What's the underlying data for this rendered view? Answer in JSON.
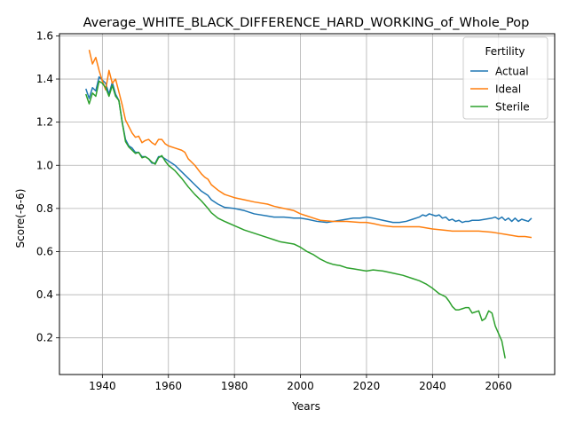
{
  "chart_data": {
    "type": "line",
    "title": "Average_WHITE_BLACK_DIFFERENCE_HARD_WORKING_of_Whole_Pop",
    "xlabel": "Years",
    "ylabel": "Score(-6-6)",
    "xlim": [
      1927,
      2077
    ],
    "ylim": [
      0.03,
      1.61
    ],
    "xticks": [
      1940,
      1960,
      1980,
      2000,
      2020,
      2040,
      2060
    ],
    "yticks": [
      0.2,
      0.4,
      0.6,
      0.8,
      1.0,
      1.2,
      1.4,
      1.6
    ],
    "ytick_labels": [
      "0.2",
      "0.4",
      "0.6",
      "0.8",
      "1.0",
      "1.2",
      "1.4",
      "1.6"
    ],
    "grid": true,
    "legend": {
      "title": "Fertility",
      "position": "top-right"
    },
    "series": [
      {
        "name": "Actual",
        "color": "#1f77b4",
        "points": [
          [
            1935,
            1.355
          ],
          [
            1936,
            1.31
          ],
          [
            1937,
            1.36
          ],
          [
            1938,
            1.345
          ],
          [
            1939,
            1.41
          ],
          [
            1940,
            1.395
          ],
          [
            1941,
            1.38
          ],
          [
            1942,
            1.33
          ],
          [
            1943,
            1.385
          ],
          [
            1944,
            1.33
          ],
          [
            1945,
            1.3
          ],
          [
            1946,
            1.2
          ],
          [
            1947,
            1.12
          ],
          [
            1948,
            1.09
          ],
          [
            1949,
            1.08
          ],
          [
            1950,
            1.06
          ],
          [
            1951,
            1.06
          ],
          [
            1952,
            1.04
          ],
          [
            1953,
            1.04
          ],
          [
            1954,
            1.03
          ],
          [
            1955,
            1.01
          ],
          [
            1956,
            1.01
          ],
          [
            1957,
            1.04
          ],
          [
            1958,
            1.04
          ],
          [
            1959,
            1.03
          ],
          [
            1960,
            1.02
          ],
          [
            1962,
            1.0
          ],
          [
            1964,
            0.97
          ],
          [
            1966,
            0.94
          ],
          [
            1968,
            0.91
          ],
          [
            1970,
            0.88
          ],
          [
            1972,
            0.86
          ],
          [
            1973,
            0.84
          ],
          [
            1975,
            0.82
          ],
          [
            1977,
            0.805
          ],
          [
            1980,
            0.8
          ],
          [
            1983,
            0.79
          ],
          [
            1986,
            0.775
          ],
          [
            1990,
            0.765
          ],
          [
            1992,
            0.76
          ],
          [
            1995,
            0.76
          ],
          [
            1998,
            0.755
          ],
          [
            2000,
            0.755
          ],
          [
            2002,
            0.75
          ],
          [
            2005,
            0.74
          ],
          [
            2008,
            0.735
          ],
          [
            2010,
            0.74
          ],
          [
            2012,
            0.745
          ],
          [
            2014,
            0.75
          ],
          [
            2016,
            0.755
          ],
          [
            2018,
            0.755
          ],
          [
            2020,
            0.76
          ],
          [
            2022,
            0.755
          ],
          [
            2025,
            0.745
          ],
          [
            2028,
            0.735
          ],
          [
            2030,
            0.735
          ],
          [
            2032,
            0.74
          ],
          [
            2034,
            0.75
          ],
          [
            2036,
            0.76
          ],
          [
            2037,
            0.77
          ],
          [
            2038,
            0.765
          ],
          [
            2039,
            0.775
          ],
          [
            2040,
            0.77
          ],
          [
            2041,
            0.765
          ],
          [
            2042,
            0.77
          ],
          [
            2043,
            0.755
          ],
          [
            2044,
            0.76
          ],
          [
            2045,
            0.745
          ],
          [
            2046,
            0.75
          ],
          [
            2047,
            0.74
          ],
          [
            2048,
            0.745
          ],
          [
            2049,
            0.735
          ],
          [
            2050,
            0.74
          ],
          [
            2051,
            0.74
          ],
          [
            2052,
            0.745
          ],
          [
            2054,
            0.745
          ],
          [
            2056,
            0.75
          ],
          [
            2058,
            0.755
          ],
          [
            2059,
            0.76
          ],
          [
            2060,
            0.75
          ],
          [
            2061,
            0.76
          ],
          [
            2062,
            0.745
          ],
          [
            2063,
            0.755
          ],
          [
            2064,
            0.74
          ],
          [
            2065,
            0.755
          ],
          [
            2066,
            0.74
          ],
          [
            2067,
            0.75
          ],
          [
            2068,
            0.745
          ],
          [
            2069,
            0.74
          ],
          [
            2070,
            0.755
          ]
        ]
      },
      {
        "name": "Ideal",
        "color": "#ff7f0e",
        "points": [
          [
            1936,
            1.535
          ],
          [
            1937,
            1.47
          ],
          [
            1938,
            1.5
          ],
          [
            1939,
            1.44
          ],
          [
            1940,
            1.39
          ],
          [
            1941,
            1.35
          ],
          [
            1942,
            1.44
          ],
          [
            1943,
            1.38
          ],
          [
            1944,
            1.4
          ],
          [
            1945,
            1.34
          ],
          [
            1946,
            1.28
          ],
          [
            1947,
            1.21
          ],
          [
            1948,
            1.18
          ],
          [
            1949,
            1.15
          ],
          [
            1950,
            1.13
          ],
          [
            1951,
            1.135
          ],
          [
            1952,
            1.105
          ],
          [
            1953,
            1.115
          ],
          [
            1954,
            1.12
          ],
          [
            1955,
            1.105
          ],
          [
            1956,
            1.095
          ],
          [
            1957,
            1.12
          ],
          [
            1958,
            1.12
          ],
          [
            1959,
            1.1
          ],
          [
            1960,
            1.09
          ],
          [
            1962,
            1.08
          ],
          [
            1964,
            1.07
          ],
          [
            1965,
            1.06
          ],
          [
            1966,
            1.03
          ],
          [
            1968,
            1.0
          ],
          [
            1970,
            0.96
          ],
          [
            1971,
            0.945
          ],
          [
            1972,
            0.935
          ],
          [
            1973,
            0.91
          ],
          [
            1975,
            0.885
          ],
          [
            1977,
            0.865
          ],
          [
            1980,
            0.85
          ],
          [
            1983,
            0.84
          ],
          [
            1986,
            0.83
          ],
          [
            1990,
            0.82
          ],
          [
            1992,
            0.81
          ],
          [
            1995,
            0.8
          ],
          [
            1998,
            0.79
          ],
          [
            2000,
            0.775
          ],
          [
            2002,
            0.765
          ],
          [
            2004,
            0.755
          ],
          [
            2006,
            0.745
          ],
          [
            2010,
            0.74
          ],
          [
            2014,
            0.74
          ],
          [
            2018,
            0.735
          ],
          [
            2020,
            0.735
          ],
          [
            2022,
            0.73
          ],
          [
            2025,
            0.72
          ],
          [
            2028,
            0.715
          ],
          [
            2031,
            0.715
          ],
          [
            2034,
            0.715
          ],
          [
            2036,
            0.715
          ],
          [
            2038,
            0.71
          ],
          [
            2040,
            0.705
          ],
          [
            2043,
            0.7
          ],
          [
            2046,
            0.695
          ],
          [
            2050,
            0.695
          ],
          [
            2054,
            0.695
          ],
          [
            2058,
            0.69
          ],
          [
            2060,
            0.685
          ],
          [
            2062,
            0.68
          ],
          [
            2064,
            0.675
          ],
          [
            2066,
            0.67
          ],
          [
            2068,
            0.67
          ],
          [
            2070,
            0.665
          ]
        ]
      },
      {
        "name": "Sterile",
        "color": "#2ca02c",
        "points": [
          [
            1935,
            1.33
          ],
          [
            1936,
            1.285
          ],
          [
            1937,
            1.335
          ],
          [
            1938,
            1.32
          ],
          [
            1939,
            1.39
          ],
          [
            1940,
            1.38
          ],
          [
            1941,
            1.36
          ],
          [
            1942,
            1.32
          ],
          [
            1943,
            1.37
          ],
          [
            1944,
            1.32
          ],
          [
            1945,
            1.3
          ],
          [
            1946,
            1.2
          ],
          [
            1947,
            1.11
          ],
          [
            1948,
            1.085
          ],
          [
            1949,
            1.07
          ],
          [
            1950,
            1.055
          ],
          [
            1951,
            1.06
          ],
          [
            1952,
            1.035
          ],
          [
            1953,
            1.04
          ],
          [
            1954,
            1.03
          ],
          [
            1955,
            1.015
          ],
          [
            1956,
            1.005
          ],
          [
            1957,
            1.035
          ],
          [
            1958,
            1.045
          ],
          [
            1959,
            1.02
          ],
          [
            1960,
            1.0
          ],
          [
            1962,
            0.975
          ],
          [
            1964,
            0.94
          ],
          [
            1966,
            0.9
          ],
          [
            1968,
            0.865
          ],
          [
            1970,
            0.835
          ],
          [
            1972,
            0.8
          ],
          [
            1973,
            0.78
          ],
          [
            1975,
            0.755
          ],
          [
            1977,
            0.74
          ],
          [
            1980,
            0.72
          ],
          [
            1983,
            0.7
          ],
          [
            1986,
            0.685
          ],
          [
            1990,
            0.665
          ],
          [
            1992,
            0.655
          ],
          [
            1994,
            0.645
          ],
          [
            1996,
            0.64
          ],
          [
            1998,
            0.635
          ],
          [
            2000,
            0.62
          ],
          [
            2002,
            0.6
          ],
          [
            2004,
            0.585
          ],
          [
            2006,
            0.565
          ],
          [
            2008,
            0.55
          ],
          [
            2010,
            0.54
          ],
          [
            2012,
            0.535
          ],
          [
            2014,
            0.525
          ],
          [
            2016,
            0.52
          ],
          [
            2018,
            0.515
          ],
          [
            2020,
            0.51
          ],
          [
            2022,
            0.515
          ],
          [
            2025,
            0.51
          ],
          [
            2028,
            0.5
          ],
          [
            2031,
            0.49
          ],
          [
            2034,
            0.475
          ],
          [
            2036,
            0.465
          ],
          [
            2038,
            0.45
          ],
          [
            2040,
            0.43
          ],
          [
            2042,
            0.405
          ],
          [
            2044,
            0.39
          ],
          [
            2045,
            0.37
          ],
          [
            2046,
            0.345
          ],
          [
            2047,
            0.33
          ],
          [
            2048,
            0.33
          ],
          [
            2049,
            0.335
          ],
          [
            2050,
            0.34
          ],
          [
            2051,
            0.34
          ],
          [
            2052,
            0.315
          ],
          [
            2053,
            0.32
          ],
          [
            2054,
            0.325
          ],
          [
            2055,
            0.28
          ],
          [
            2056,
            0.29
          ],
          [
            2057,
            0.325
          ],
          [
            2058,
            0.315
          ],
          [
            2059,
            0.255
          ],
          [
            2060,
            0.22
          ],
          [
            2061,
            0.185
          ],
          [
            2062,
            0.105
          ]
        ]
      }
    ]
  }
}
